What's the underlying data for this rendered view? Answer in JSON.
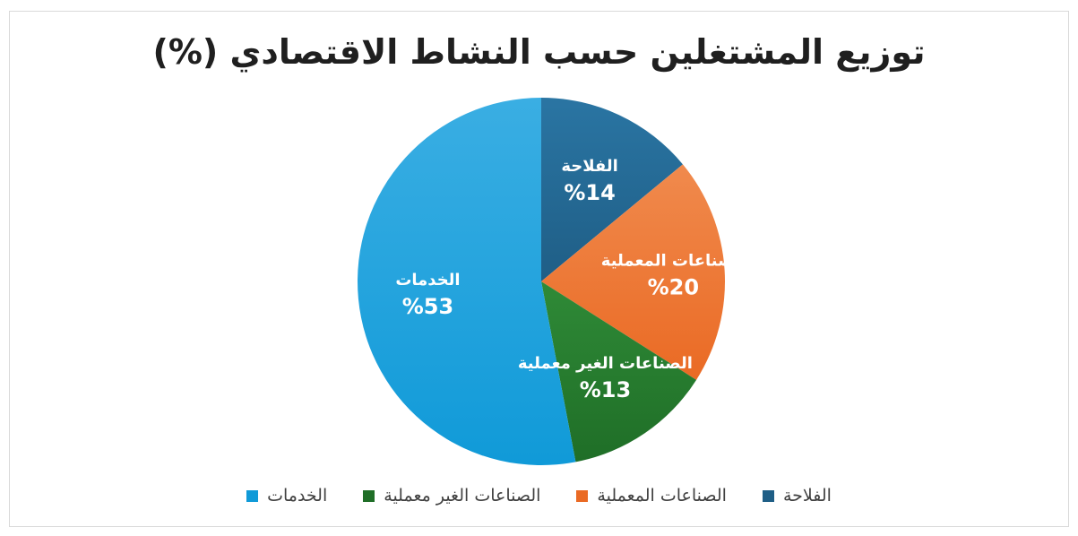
{
  "chart_data": {
    "type": "pie",
    "title": "توزيع المشتغلين حسب النشاط الاقتصادي (%)",
    "slices": [
      {
        "label": "الفلاحة",
        "value": 14,
        "value_label": "%14",
        "color": "#1f5e86",
        "color_light": "#2a75a3"
      },
      {
        "label": "الصناعات المعملية",
        "value": 20,
        "value_label": "%20",
        "color": "#ea6a24",
        "color_light": "#f08a4d"
      },
      {
        "label": "الصناعات الغير معملية",
        "value": 13,
        "value_label": "%13",
        "color": "#1f6e27",
        "color_light": "#2f8a37"
      },
      {
        "label": "الخدمات",
        "value": 53,
        "value_label": "%53",
        "color": "#109ad8",
        "color_light": "#3aaee3"
      }
    ],
    "start_angle_deg": 0,
    "direction": "clockwise",
    "legend_position": "bottom"
  }
}
